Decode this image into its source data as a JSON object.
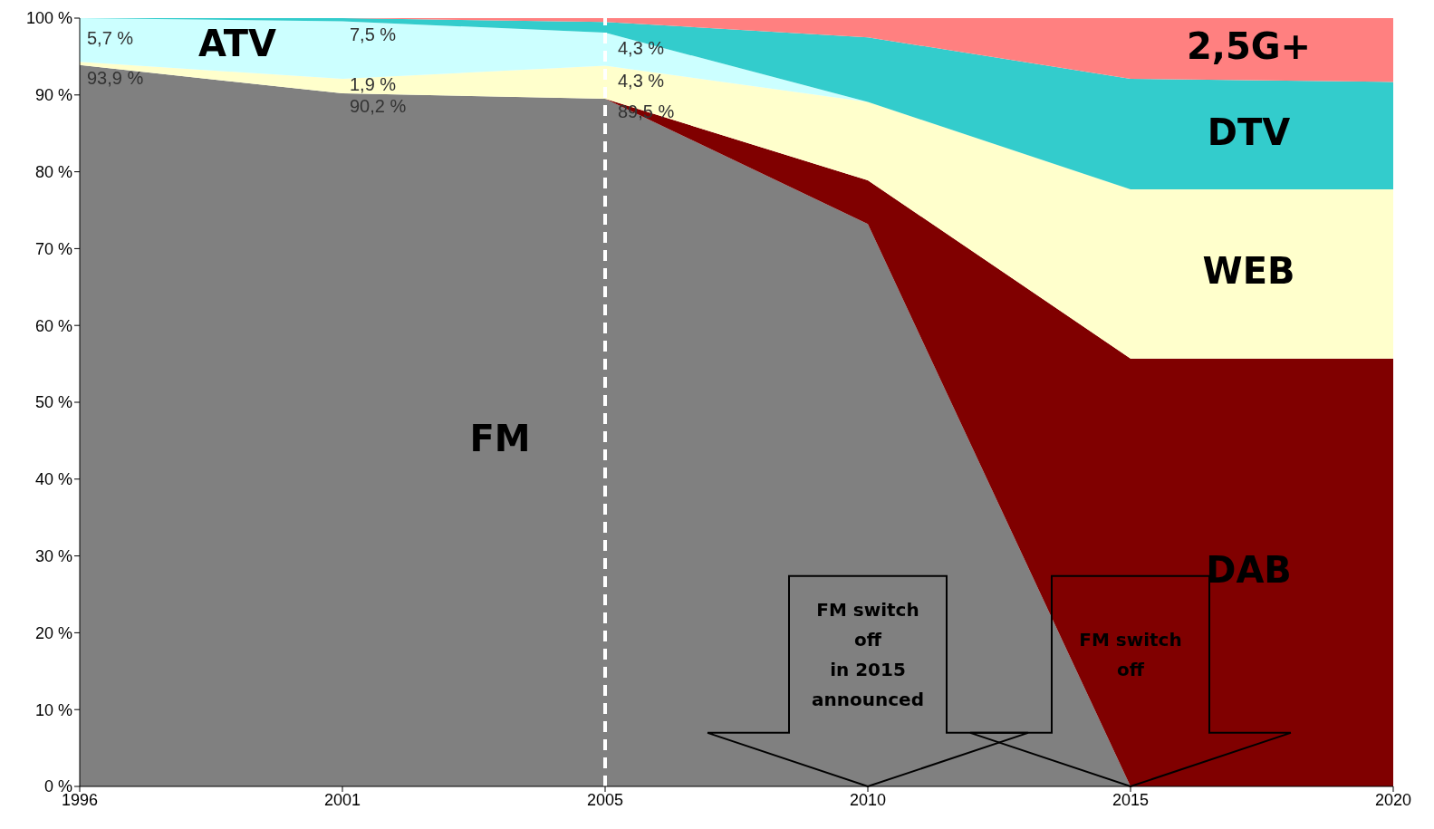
{
  "chart_data": {
    "type": "area",
    "stacked": true,
    "categories": [
      "1996",
      "2001",
      "2005",
      "2010",
      "2015",
      "2020"
    ],
    "series": [
      {
        "name": "FM",
        "color": "#808080",
        "values": [
          93.9,
          90.2,
          89.5,
          73.2,
          0,
          0
        ],
        "value_labels": [
          "93,9 %",
          "90,2 %",
          "89,5 %",
          null,
          null,
          null
        ]
      },
      {
        "name": "DAB",
        "color": "#800000",
        "values": [
          null,
          null,
          0,
          5.7,
          55.7,
          55.7
        ]
      },
      {
        "name": "WEB",
        "color": "#ffffcc",
        "values": [
          0.4,
          1.9,
          4.3,
          10.2,
          22,
          22
        ],
        "value_labels": [
          null,
          "1,9 %",
          "4,3 %",
          null,
          null,
          null
        ]
      },
      {
        "name": "ATV",
        "color": "#ccffff",
        "values": [
          5.7,
          7.5,
          4.3,
          0,
          null,
          null
        ],
        "value_labels": [
          "5,7 %",
          "7,5 %",
          "4,3 %",
          null,
          null,
          null
        ]
      },
      {
        "name": "DTV",
        "color": "#33cccc",
        "values": [
          0,
          0.4,
          1.4,
          8.4,
          14.4,
          14
        ]
      },
      {
        "name": "2,5G+",
        "color": "#ff8080",
        "values": [
          null,
          0,
          0.5,
          2.5,
          7.9,
          8.3
        ]
      }
    ],
    "ylim": [
      0,
      100
    ],
    "yticks": [
      {
        "value": 0,
        "label": "0 %"
      },
      {
        "value": 10,
        "label": "10 %"
      },
      {
        "value": 20,
        "label": "20 %"
      },
      {
        "value": 30,
        "label": "30 %"
      },
      {
        "value": 40,
        "label": "40 %"
      },
      {
        "value": 50,
        "label": "50 %"
      },
      {
        "value": 60,
        "label": "60 %"
      },
      {
        "value": 70,
        "label": "70 %"
      },
      {
        "value": 80,
        "label": "80 %"
      },
      {
        "value": 90,
        "label": "90 %"
      },
      {
        "value": 100,
        "label": "100 %"
      }
    ],
    "grid": false,
    "legend": false,
    "ref_lines": [
      {
        "axis": "x",
        "value": "2005",
        "color": "#ffffff",
        "line_style": "dashed"
      }
    ],
    "annotations": [
      "FM switch\noff\nin 2015\nannounced",
      "FM switch\noff"
    ]
  }
}
